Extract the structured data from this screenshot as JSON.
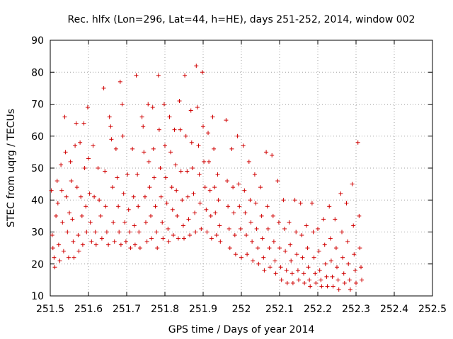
{
  "chart_data": {
    "type": "scatter",
    "title": "Rec. hlfx (Lon=296, Lat=44, h=HE), days 251-252, 2014, window 002",
    "xlabel": "GPS time / Days of year 2014",
    "ylabel": "STEC from uqrg / TECUs",
    "xlim": [
      251.5,
      252.5
    ],
    "ylim": [
      10,
      90
    ],
    "xticks": [
      "251.5",
      "251.6",
      "251.7",
      "251.8",
      "251.9",
      "252",
      "252.1",
      "252.2",
      "252.3",
      "252.4",
      "252.5"
    ],
    "yticks": [
      "10",
      "20",
      "30",
      "40",
      "50",
      "60",
      "70",
      "80",
      "90"
    ],
    "grid": true,
    "marker": "plus",
    "color": "#d00000",
    "series": [
      {
        "points": [
          [
            251.503,
            43
          ],
          [
            251.505,
            29
          ],
          [
            251.507,
            25
          ],
          [
            251.51,
            22
          ],
          [
            251.512,
            19
          ],
          [
            251.515,
            35
          ],
          [
            251.518,
            46
          ],
          [
            251.52,
            39
          ],
          [
            251.522,
            26
          ],
          [
            251.525,
            21
          ],
          [
            251.528,
            51
          ],
          [
            251.53,
            43
          ],
          [
            251.532,
            33
          ],
          [
            251.535,
            24
          ],
          [
            251.538,
            66
          ],
          [
            251.54,
            55
          ],
          [
            251.542,
            41
          ],
          [
            251.545,
            30
          ],
          [
            251.548,
            22
          ],
          [
            251.55,
            36
          ],
          [
            251.553,
            52
          ],
          [
            251.555,
            46
          ],
          [
            251.558,
            34
          ],
          [
            251.56,
            27
          ],
          [
            251.562,
            22
          ],
          [
            251.565,
            57
          ],
          [
            251.568,
            64
          ],
          [
            251.57,
            44
          ],
          [
            251.573,
            29
          ],
          [
            251.575,
            24
          ],
          [
            251.578,
            58
          ],
          [
            251.58,
            41
          ],
          [
            251.583,
            35
          ],
          [
            251.585,
            26
          ],
          [
            251.588,
            64
          ],
          [
            251.59,
            50
          ],
          [
            251.593,
            38
          ],
          [
            251.595,
            30
          ],
          [
            251.598,
            69
          ],
          [
            251.6,
            53
          ],
          [
            251.603,
            42
          ],
          [
            251.605,
            33
          ],
          [
            251.608,
            27
          ],
          [
            251.612,
            57
          ],
          [
            251.615,
            41
          ],
          [
            251.618,
            30
          ],
          [
            251.62,
            26
          ],
          [
            251.625,
            50
          ],
          [
            251.628,
            40
          ],
          [
            251.632,
            35
          ],
          [
            251.635,
            28
          ],
          [
            251.64,
            75
          ],
          [
            251.643,
            49
          ],
          [
            251.645,
            38
          ],
          [
            251.648,
            30
          ],
          [
            251.652,
            26
          ],
          [
            251.655,
            66
          ],
          [
            251.658,
            63
          ],
          [
            251.66,
            59
          ],
          [
            251.663,
            44
          ],
          [
            251.665,
            33
          ],
          [
            251.668,
            27
          ],
          [
            251.672,
            56
          ],
          [
            251.675,
            47
          ],
          [
            251.678,
            38
          ],
          [
            251.68,
            30
          ],
          [
            251.683,
            77
          ],
          [
            251.685,
            26
          ],
          [
            251.688,
            70
          ],
          [
            251.69,
            60
          ],
          [
            251.692,
            42
          ],
          [
            251.695,
            33
          ],
          [
            251.698,
            27
          ],
          [
            251.702,
            48
          ],
          [
            251.705,
            37
          ],
          [
            251.708,
            30
          ],
          [
            251.71,
            25
          ],
          [
            251.715,
            56
          ],
          [
            251.718,
            41
          ],
          [
            251.72,
            32
          ],
          [
            251.722,
            26
          ],
          [
            251.725,
            79
          ],
          [
            251.728,
            48
          ],
          [
            251.73,
            38
          ],
          [
            251.732,
            30
          ],
          [
            251.735,
            25
          ],
          [
            251.74,
            66
          ],
          [
            251.743,
            63
          ],
          [
            251.745,
            55
          ],
          [
            251.748,
            41
          ],
          [
            251.75,
            33
          ],
          [
            251.753,
            27
          ],
          [
            251.756,
            70
          ],
          [
            251.758,
            52
          ],
          [
            251.76,
            44
          ],
          [
            251.763,
            35
          ],
          [
            251.765,
            28
          ],
          [
            251.768,
            69
          ],
          [
            251.77,
            56
          ],
          [
            251.772,
            47
          ],
          [
            251.775,
            38
          ],
          [
            251.778,
            30
          ],
          [
            251.78,
            25
          ],
          [
            251.783,
            79
          ],
          [
            251.785,
            62
          ],
          [
            251.788,
            50
          ],
          [
            251.79,
            41
          ],
          [
            251.793,
            33
          ],
          [
            251.795,
            28
          ],
          [
            251.798,
            70
          ],
          [
            251.8,
            57
          ],
          [
            251.802,
            47
          ],
          [
            251.805,
            39
          ],
          [
            251.808,
            31
          ],
          [
            251.81,
            27
          ],
          [
            251.812,
            66
          ],
          [
            251.815,
            55
          ],
          [
            251.818,
            44
          ],
          [
            251.82,
            37
          ],
          [
            251.822,
            29
          ],
          [
            251.825,
            62
          ],
          [
            251.828,
            51
          ],
          [
            251.83,
            43
          ],
          [
            251.832,
            35
          ],
          [
            251.835,
            28
          ],
          [
            251.838,
            71
          ],
          [
            251.84,
            62
          ],
          [
            251.842,
            49
          ],
          [
            251.845,
            40
          ],
          [
            251.848,
            32
          ],
          [
            251.85,
            28
          ],
          [
            251.852,
            79
          ],
          [
            251.855,
            60
          ],
          [
            251.858,
            49
          ],
          [
            251.86,
            41
          ],
          [
            251.862,
            34
          ],
          [
            251.865,
            29
          ],
          [
            251.868,
            68
          ],
          [
            251.87,
            58
          ],
          [
            251.872,
            50
          ],
          [
            251.875,
            42
          ],
          [
            251.878,
            36
          ],
          [
            251.88,
            30
          ],
          [
            251.882,
            82
          ],
          [
            251.885,
            69
          ],
          [
            251.888,
            57
          ],
          [
            251.89,
            48
          ],
          [
            251.892,
            39
          ],
          [
            251.895,
            31
          ],
          [
            251.898,
            80
          ],
          [
            251.9,
            63
          ],
          [
            251.902,
            52
          ],
          [
            251.905,
            44
          ],
          [
            251.908,
            37
          ],
          [
            251.91,
            30
          ],
          [
            251.913,
            61
          ],
          [
            251.915,
            52
          ],
          [
            251.918,
            43
          ],
          [
            251.92,
            35
          ],
          [
            251.922,
            28
          ],
          [
            251.925,
            66
          ],
          [
            251.928,
            56
          ],
          [
            251.93,
            44
          ],
          [
            251.932,
            36
          ],
          [
            251.935,
            29
          ],
          [
            251.938,
            48
          ],
          [
            251.94,
            40
          ],
          [
            251.943,
            32
          ],
          [
            251.945,
            27
          ],
          [
            251.96,
            65
          ],
          [
            251.963,
            46
          ],
          [
            251.965,
            38
          ],
          [
            251.968,
            31
          ],
          [
            251.97,
            25
          ],
          [
            251.975,
            56
          ],
          [
            251.978,
            44
          ],
          [
            251.98,
            36
          ],
          [
            251.983,
            29
          ],
          [
            251.985,
            23
          ],
          [
            251.99,
            60
          ],
          [
            251.993,
            45
          ],
          [
            251.995,
            38
          ],
          [
            251.998,
            31
          ],
          [
            252.0,
            22
          ],
          [
            252.005,
            57
          ],
          [
            252.008,
            43
          ],
          [
            252.01,
            36
          ],
          [
            252.013,
            29
          ],
          [
            252.015,
            23
          ],
          [
            252.02,
            52
          ],
          [
            252.023,
            40
          ],
          [
            252.025,
            33
          ],
          [
            252.028,
            27
          ],
          [
            252.03,
            21
          ],
          [
            252.035,
            48
          ],
          [
            252.038,
            39
          ],
          [
            252.04,
            31
          ],
          [
            252.043,
            25
          ],
          [
            252.045,
            20
          ],
          [
            252.05,
            44
          ],
          [
            252.053,
            35
          ],
          [
            252.055,
            28
          ],
          [
            252.058,
            22
          ],
          [
            252.06,
            18
          ],
          [
            252.065,
            55
          ],
          [
            252.068,
            38
          ],
          [
            252.07,
            31
          ],
          [
            252.073,
            25
          ],
          [
            252.075,
            19
          ],
          [
            252.08,
            54
          ],
          [
            252.083,
            35
          ],
          [
            252.085,
            27
          ],
          [
            252.088,
            21
          ],
          [
            252.09,
            17
          ],
          [
            252.095,
            46
          ],
          [
            252.098,
            33
          ],
          [
            252.1,
            25
          ],
          [
            252.103,
            19
          ],
          [
            252.105,
            15
          ],
          [
            252.11,
            40
          ],
          [
            252.113,
            31
          ],
          [
            252.115,
            24
          ],
          [
            252.118,
            18
          ],
          [
            252.12,
            14
          ],
          [
            252.125,
            33
          ],
          [
            252.128,
            26
          ],
          [
            252.13,
            21
          ],
          [
            252.133,
            17
          ],
          [
            252.135,
            14
          ],
          [
            252.14,
            40
          ],
          [
            252.143,
            30
          ],
          [
            252.145,
            23
          ],
          [
            252.148,
            18
          ],
          [
            252.15,
            15
          ],
          [
            252.155,
            39
          ],
          [
            252.158,
            29
          ],
          [
            252.16,
            22
          ],
          [
            252.163,
            17
          ],
          [
            252.165,
            14
          ],
          [
            252.17,
            32
          ],
          [
            252.173,
            25
          ],
          [
            252.175,
            19
          ],
          [
            252.178,
            15
          ],
          [
            252.18,
            13
          ],
          [
            252.185,
            39
          ],
          [
            252.188,
            30
          ],
          [
            252.19,
            22
          ],
          [
            252.193,
            17
          ],
          [
            252.195,
            14
          ],
          [
            252.2,
            31
          ],
          [
            252.203,
            24
          ],
          [
            252.205,
            18
          ],
          [
            252.208,
            15
          ],
          [
            252.21,
            13
          ],
          [
            252.215,
            34
          ],
          [
            252.218,
            26
          ],
          [
            252.22,
            20
          ],
          [
            252.223,
            16
          ],
          [
            252.225,
            13
          ],
          [
            252.23,
            38
          ],
          [
            252.233,
            28
          ],
          [
            252.235,
            21
          ],
          [
            252.238,
            16
          ],
          [
            252.24,
            13
          ],
          [
            252.245,
            34
          ],
          [
            252.248,
            25
          ],
          [
            252.25,
            19
          ],
          [
            252.253,
            15
          ],
          [
            252.255,
            12
          ],
          [
            252.26,
            42
          ],
          [
            252.263,
            30
          ],
          [
            252.265,
            22
          ],
          [
            252.268,
            17
          ],
          [
            252.27,
            14
          ],
          [
            252.275,
            39
          ],
          [
            252.278,
            27
          ],
          [
            252.28,
            20
          ],
          [
            252.283,
            15
          ],
          [
            252.285,
            12
          ],
          [
            252.29,
            45
          ],
          [
            252.293,
            32
          ],
          [
            252.295,
            23
          ],
          [
            252.298,
            18
          ],
          [
            252.3,
            14
          ],
          [
            252.305,
            58
          ],
          [
            252.308,
            35
          ],
          [
            252.31,
            25
          ],
          [
            252.313,
            19
          ],
          [
            252.315,
            15
          ]
        ]
      }
    ]
  }
}
